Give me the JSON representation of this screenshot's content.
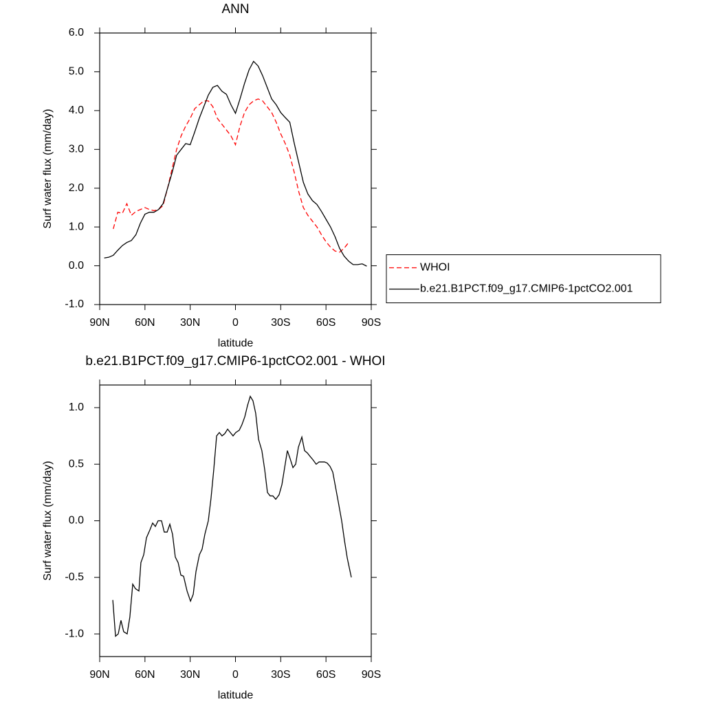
{
  "chart_data": [
    {
      "type": "line",
      "title": "ANN",
      "xlabel": "latitude",
      "ylabel": "Surf water flux (mm/day)",
      "x": [
        87,
        84,
        81,
        78,
        75,
        72,
        69,
        66,
        63,
        60,
        57,
        54,
        51,
        48,
        45,
        42,
        39,
        36,
        33,
        30,
        27,
        24,
        21,
        18,
        15,
        12,
        9,
        6,
        3,
        0,
        -3,
        -6,
        -9,
        -12,
        -15,
        -18,
        -21,
        -24,
        -27,
        -30,
        -33,
        -36,
        -39,
        -42,
        -45,
        -48,
        -51,
        -54,
        -57,
        -60,
        -63,
        -66,
        -69,
        -72,
        -75,
        -78,
        -81,
        -84,
        -87
      ],
      "series": [
        {
          "name": "WHOI",
          "color": "#ff0000",
          "line_style": "dashed",
          "values": [
            null,
            null,
            0.95,
            1.38,
            1.35,
            1.6,
            1.3,
            1.4,
            1.45,
            1.5,
            1.45,
            1.42,
            1.45,
            1.55,
            2.0,
            2.5,
            3.0,
            3.35,
            3.6,
            3.8,
            4.05,
            4.15,
            4.25,
            4.25,
            4.1,
            3.8,
            3.65,
            3.5,
            3.35,
            3.12,
            3.6,
            3.95,
            4.15,
            4.25,
            4.3,
            4.25,
            4.1,
            3.95,
            3.7,
            3.4,
            3.15,
            2.85,
            2.4,
            1.9,
            1.5,
            1.3,
            1.15,
            1.0,
            0.8,
            0.62,
            0.48,
            0.38,
            0.35,
            0.45,
            0.6,
            null,
            null,
            null,
            null
          ]
        },
        {
          "name": "b.e21.B1PCT.f09_g17.CMIP6-1pctCO2.001",
          "color": "#000000",
          "line_style": "solid",
          "values": [
            0.2,
            0.22,
            0.27,
            0.4,
            0.52,
            0.6,
            0.65,
            0.8,
            1.1,
            1.33,
            1.38,
            1.38,
            1.45,
            1.6,
            2.0,
            2.4,
            2.85,
            3.0,
            3.15,
            3.12,
            3.45,
            3.8,
            4.1,
            4.4,
            4.6,
            4.65,
            4.5,
            4.42,
            4.15,
            3.93,
            4.3,
            4.7,
            5.05,
            5.27,
            5.15,
            4.9,
            4.6,
            4.3,
            4.15,
            3.95,
            3.82,
            3.7,
            3.15,
            2.65,
            2.15,
            1.85,
            1.68,
            1.58,
            1.4,
            1.2,
            1.0,
            0.75,
            0.45,
            0.25,
            0.12,
            0.03,
            0.03,
            0.05,
            -0.01
          ]
        }
      ],
      "xlim": [
        90,
        -90
      ],
      "xticks": [
        {
          "value": 90,
          "label": "90N"
        },
        {
          "value": 60,
          "label": "60N"
        },
        {
          "value": 30,
          "label": "30N"
        },
        0,
        {
          "value": -30,
          "label": "30S"
        },
        {
          "value": -60,
          "label": "60S"
        },
        {
          "value": -90,
          "label": "90S"
        }
      ],
      "ylim": [
        -1,
        6
      ],
      "yticks": [
        {
          "value": 6,
          "label": "6.0"
        },
        {
          "value": 5,
          "label": "5.0"
        },
        {
          "value": 4,
          "label": "4.0"
        },
        {
          "value": 3,
          "label": "3.0"
        },
        {
          "value": 2,
          "label": "2.0"
        },
        {
          "value": 1,
          "label": "1.0"
        },
        {
          "value": 0,
          "label": "0.0"
        },
        {
          "value": -1,
          "label": "-1.0"
        }
      ],
      "legend": "right"
    },
    {
      "type": "line",
      "title": "b.e21.B1PCT.f09_g17.CMIP6-1pctCO2.001 - WHOI",
      "xlabel": "latitude",
      "ylabel": "Surf water flux (mm/day)",
      "x": [
        81.3,
        79.5,
        77.7,
        75.9,
        74.1,
        71.8,
        70.0,
        68.1,
        66.3,
        64.0,
        62.7,
        60.8,
        59.0,
        56.7,
        54.9,
        53.1,
        51.3,
        49.0,
        47.2,
        45.3,
        43.5,
        41.7,
        39.9,
        38.0,
        36.2,
        34.4,
        32.1,
        29.8,
        28.0,
        26.2,
        23.9,
        22.1,
        20.3,
        18.0,
        16.2,
        14.4,
        12.5,
        10.7,
        8.9,
        7.1,
        5.2,
        3.4,
        1.6,
        -0.2,
        -2.5,
        -4.3,
        -6.2,
        -8.0,
        -9.8,
        -11.6,
        -13.4,
        -15.3,
        -17.5,
        -19.4,
        -21.2,
        -23.0,
        -24.8,
        -26.7,
        -28.9,
        -30.8,
        -32.6,
        -34.4,
        -36.2,
        -38.1,
        -39.9,
        -41.7,
        -44.0,
        -45.8,
        -47.6,
        -49.4,
        -51.3,
        -53.5,
        -55.4,
        -57.2,
        -59.0,
        -60.8,
        -62.7,
        -64.5,
        -66.3,
        -68.1,
        -70.4,
        -72.2,
        -74.1,
        -76.8
      ],
      "series": [
        {
          "color": "#000000",
          "line_style": "solid",
          "values": [
            -0.7,
            -1.02,
            -1.0,
            -0.88,
            -0.98,
            -1.0,
            -0.85,
            -0.56,
            -0.6,
            -0.62,
            -0.37,
            -0.3,
            -0.15,
            -0.08,
            -0.02,
            -0.05,
            0.0,
            0.0,
            -0.1,
            -0.1,
            -0.03,
            -0.12,
            -0.32,
            -0.37,
            -0.48,
            -0.49,
            -0.62,
            -0.71,
            -0.65,
            -0.45,
            -0.3,
            -0.25,
            -0.12,
            0.0,
            0.2,
            0.45,
            0.75,
            0.78,
            0.75,
            0.77,
            0.81,
            0.78,
            0.75,
            0.78,
            0.8,
            0.85,
            0.92,
            1.02,
            1.1,
            1.06,
            0.95,
            0.72,
            0.62,
            0.45,
            0.25,
            0.22,
            0.22,
            0.19,
            0.23,
            0.32,
            0.47,
            0.62,
            0.55,
            0.47,
            0.5,
            0.65,
            0.74,
            0.62,
            0.6,
            0.57,
            0.54,
            0.5,
            0.52,
            0.52,
            0.52,
            0.51,
            0.48,
            0.43,
            0.3,
            0.17,
            0.0,
            -0.17,
            -0.33,
            -0.5
          ]
        }
      ],
      "xlim": [
        90,
        -90
      ],
      "xticks": [
        {
          "value": 90,
          "label": "90N"
        },
        {
          "value": 60,
          "label": "60N"
        },
        {
          "value": 30,
          "label": "30N"
        },
        0,
        {
          "value": -30,
          "label": "30S"
        },
        {
          "value": -60,
          "label": "60S"
        },
        {
          "value": -90,
          "label": "90S"
        }
      ],
      "ylim": [
        -1.2,
        1.2
      ],
      "yticks": [
        {
          "value": 1,
          "label": "1.0"
        },
        0.5,
        {
          "value": 0,
          "label": "0.0"
        },
        -0.5,
        {
          "value": -1,
          "label": "-1.0"
        }
      ]
    }
  ]
}
